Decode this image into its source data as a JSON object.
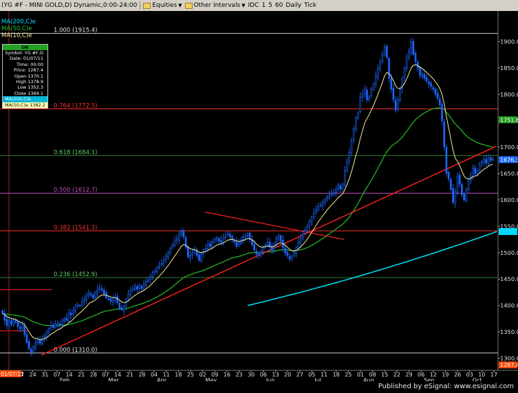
{
  "toolbar": {
    "symbol_title": "(YG #F - MINI GOLD,D) Dynamic,0:00-24:00",
    "equities": "Equities",
    "other_intervals": "Other Intervals",
    "idc": "IDC",
    "i1": "1",
    "i5": "5",
    "i60": "60",
    "daily": "Daily",
    "tick": "Tick"
  },
  "legend": {
    "ma200": "MA(200,C)e",
    "ma50": "MA(50,C)e",
    "ma10": "MA(10,C)e"
  },
  "colors": {
    "ma200": "#00e5ff",
    "ma50": "#1f9e1f",
    "ma10": "#f5f0a0",
    "trendline": "#ff2020",
    "fib_line": "#ff3030",
    "fib_green": "#2e7d2e",
    "candle": "#1c66ff"
  },
  "cursor_box": {
    "header": "OK",
    "rows": [
      "Symbol: YG #F,D",
      "Date: 01/07/11",
      "Time: 00:00",
      "Price: 1287.4",
      "Open 1370.1",
      "High 1378.9",
      "Low 1352.3",
      "Close 1369.1"
    ],
    "ma200_row": "MA(200,C)e",
    "ma50_row": "MA(50,C)e 1382.2"
  },
  "chart_data": {
    "type": "candlestick",
    "y_axis": {
      "range": [
        1285,
        1950
      ],
      "ticks": [
        1300.0,
        1350.0,
        1400.0,
        1450.0,
        1500.0,
        1550.0,
        1600.0,
        1650.0,
        1700.0,
        1750.0,
        1800.0,
        1850.0,
        1900.0
      ],
      "tick_labels": [
        "1300.0",
        "1350.0",
        "1400.0",
        "1450.0",
        "1500.0",
        "1550.0",
        "1600.0",
        "1650.0",
        "1700.0",
        "1750.0",
        "1800.0",
        "1850.0",
        "1900.0"
      ]
    },
    "x_axis": {
      "labels": [
        "17",
        "24",
        "31",
        "07",
        "14",
        "21",
        "28",
        "07",
        "14",
        "21",
        "28",
        "04",
        "11",
        "18",
        "25",
        "02",
        "09",
        "16",
        "23",
        "30",
        "06",
        "13",
        "20",
        "27",
        "05",
        "11",
        "18",
        "25",
        "01",
        "08",
        "15",
        "22",
        "29",
        "06",
        "12",
        "19",
        "26",
        "03",
        "10",
        "17"
      ],
      "month_labels": [
        "Feb",
        "Mar",
        "Apr",
        "May",
        "Jun",
        "Jul",
        "Aug",
        "Sep",
        "Oct"
      ],
      "cursor_date_label": "01/07/11"
    },
    "fib_levels": [
      {
        "label": "1.000 (1915.4)",
        "value": 1915.4,
        "color": "#cfcfcf"
      },
      {
        "label": "0.764 (1772.5)",
        "value": 1772.5,
        "color": "#ff3030"
      },
      {
        "label": "0.618 (1684.1)",
        "value": 1684.1,
        "color": "#2e7d2e"
      },
      {
        "label": "0.500 (1612.7)",
        "value": 1612.7,
        "color": "#c050c0"
      },
      {
        "label": "0.382 (1541.3)",
        "value": 1541.3,
        "color": "#ff3030"
      },
      {
        "label": "0.236 (1452.9)",
        "value": 1452.9,
        "color": "#2e7d2e"
      },
      {
        "label": "0.000 (1310.0)",
        "value": 1310.0,
        "color": "#cfcfcf"
      }
    ],
    "price_tags": [
      {
        "value": 1751.8,
        "label": "1751.8",
        "bg": "#1f9e1f",
        "fg": "#ffffff"
      },
      {
        "value": 1676.3,
        "label": "1676.3",
        "bg": "#1c66ff",
        "fg": "#ffffff"
      },
      {
        "value": 1540.0,
        "label": "1540.0",
        "bg": "#00d8ff",
        "fg": "#00d8ff"
      },
      {
        "value": 1287.4,
        "label": "1287.4",
        "bg": "#ff4500",
        "fg": "#ffffff"
      }
    ],
    "closes": [
      1385,
      1372,
      1362,
      1370,
      1365,
      1372,
      1368,
      1360,
      1356,
      1363,
      1345,
      1330,
      1318,
      1312,
      1322,
      1330,
      1333,
      1328,
      1338,
      1342,
      1350,
      1356,
      1362,
      1358,
      1365,
      1366,
      1362,
      1372,
      1375,
      1372,
      1386,
      1382,
      1391,
      1398,
      1402,
      1400,
      1407,
      1412,
      1418,
      1424,
      1420,
      1414,
      1425,
      1430,
      1434,
      1429,
      1422,
      1415,
      1412,
      1408,
      1410,
      1415,
      1406,
      1395,
      1392,
      1398,
      1411,
      1421,
      1428,
      1432,
      1436,
      1431,
      1438,
      1432,
      1440,
      1446,
      1448,
      1455,
      1462,
      1466,
      1472,
      1475,
      1480,
      1486,
      1494,
      1500,
      1508,
      1515,
      1522,
      1526,
      1535,
      1540,
      1530,
      1510,
      1492,
      1495,
      1500,
      1505,
      1495,
      1486,
      1498,
      1505,
      1508,
      1516,
      1512,
      1520,
      1525,
      1528,
      1522,
      1520,
      1528,
      1532,
      1536,
      1530,
      1526,
      1520,
      1512,
      1518,
      1524,
      1530,
      1532,
      1535,
      1525,
      1515,
      1505,
      1497,
      1495,
      1502,
      1510,
      1515,
      1520,
      1510,
      1505,
      1515,
      1528,
      1532,
      1522,
      1510,
      1500,
      1495,
      1488,
      1492,
      1500,
      1510,
      1520,
      1528,
      1535,
      1542,
      1550,
      1560,
      1568,
      1575,
      1582,
      1588,
      1590,
      1596,
      1600,
      1606,
      1608,
      1612,
      1614,
      1620,
      1628,
      1620,
      1630,
      1655,
      1672,
      1690,
      1712,
      1735,
      1755,
      1765,
      1795,
      1800,
      1810,
      1790,
      1795,
      1810,
      1820,
      1835,
      1848,
      1860,
      1876,
      1890,
      1870,
      1830,
      1810,
      1790,
      1770,
      1790,
      1810,
      1830,
      1850,
      1868,
      1880,
      1900,
      1876,
      1862,
      1850,
      1836,
      1838,
      1830,
      1825,
      1820,
      1815,
      1810,
      1800,
      1792,
      1780,
      1750,
      1700,
      1650,
      1640,
      1620,
      1595,
      1615,
      1645,
      1630,
      1610,
      1600,
      1620,
      1635,
      1645,
      1660,
      1650,
      1655,
      1668,
      1672,
      1676,
      1670,
      1680,
      1675,
      1676
    ],
    "ma200": [
      1400,
      1540
    ],
    "ma50_last": 1751.8
  }
}
